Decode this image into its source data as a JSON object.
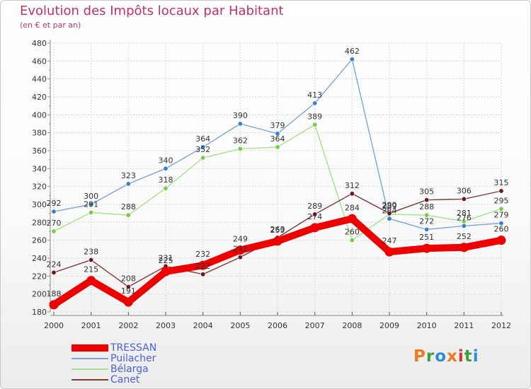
{
  "header": {
    "title": "Evolution des Impôts locaux par Habitant",
    "subtitle": "(en € et par an)"
  },
  "brand": {
    "name": "Proxiti",
    "letters": [
      "P",
      "r",
      "o",
      "x",
      "i",
      "t",
      "i"
    ]
  },
  "colors": {
    "title": "#c0306a",
    "legend_text": "#4a5fd8",
    "logo": [
      "#f07820",
      "#40a040",
      "#2a8fd8",
      "#f07820",
      "#d83030",
      "#40a040",
      "#2a8fd8"
    ]
  },
  "chart_data": {
    "type": "line",
    "title": "Evolution des Impôts locaux par Habitant",
    "subtitle": "(en € et par an)",
    "xlabel": "",
    "ylabel": "",
    "x": [
      "2000",
      "2001",
      "2002",
      "2003",
      "2004",
      "2005",
      "2006",
      "2007",
      "2008",
      "2009",
      "2010",
      "2011",
      "2012"
    ],
    "ylim": [
      180,
      480
    ],
    "yticks": [
      180,
      200,
      220,
      240,
      260,
      280,
      300,
      320,
      340,
      360,
      380,
      400,
      420,
      440,
      460,
      480
    ],
    "grid": true,
    "legend_position": "bottom-left",
    "series": [
      {
        "name": "TRESSAN",
        "color": "#ee0000",
        "marker": "#ee0000",
        "emphasis": true,
        "values": [
          188,
          215,
          191,
          225,
          232,
          249,
          259,
          274,
          284,
          247,
          251,
          252,
          260
        ]
      },
      {
        "name": "Puilacher",
        "color": "#7aa6d6",
        "marker": "#3a80c8",
        "emphasis": false,
        "values": [
          292,
          300,
          323,
          340,
          364,
          390,
          379,
          413,
          462,
          284,
          272,
          276,
          279
        ]
      },
      {
        "name": "Bélarga",
        "color": "#a6e08a",
        "marker": "#78cc48",
        "emphasis": false,
        "values": [
          270,
          291,
          288,
          318,
          352,
          362,
          364,
          389,
          260,
          289,
          288,
          281,
          295
        ]
      },
      {
        "name": "Canet",
        "color": "#7a3a3a",
        "marker": "#6a1a1a",
        "emphasis": false,
        "values": [
          224,
          238,
          208,
          231,
          222,
          241,
          263,
          289,
          312,
          290,
          305,
          306,
          315
        ]
      }
    ]
  }
}
